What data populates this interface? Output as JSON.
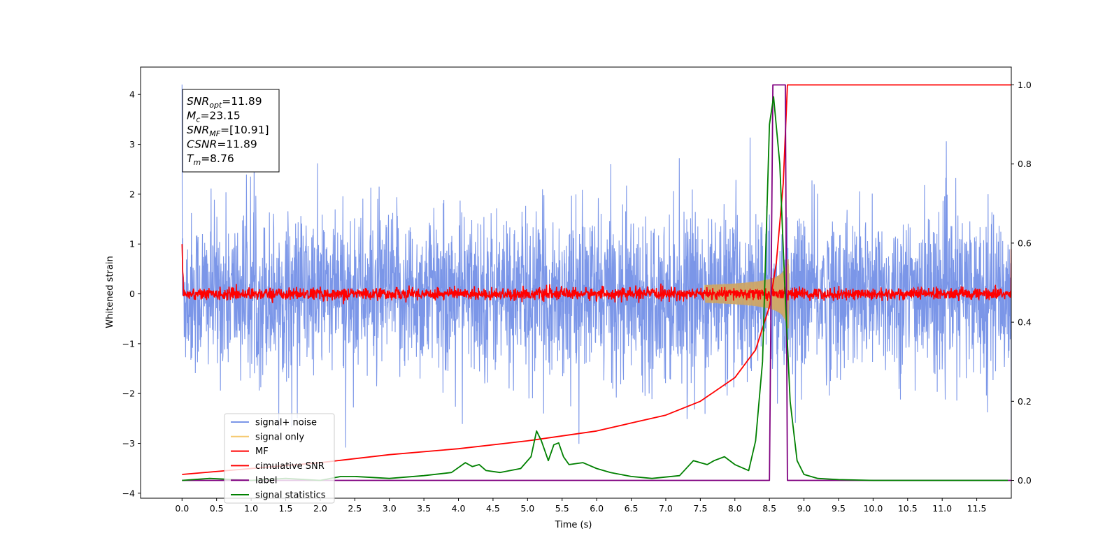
{
  "chart_data": {
    "type": "line",
    "xlabel": "Time (s)",
    "ylabel": "Whitened strain",
    "xlim": [
      -0.6,
      12.0
    ],
    "ylim_left": [
      -4.1,
      4.55
    ],
    "ylim_right": [
      -0.045,
      1.045
    ],
    "x_ticks": [
      0.0,
      0.5,
      1.0,
      1.5,
      2.0,
      2.5,
      3.0,
      3.5,
      4.0,
      4.5,
      5.0,
      5.5,
      6.0,
      6.5,
      7.0,
      7.5,
      8.0,
      8.5,
      9.0,
      9.5,
      10.0,
      10.5,
      11.0,
      11.5
    ],
    "x_tick_labels": [
      "0.0",
      "0.5",
      "1.0",
      "1.5",
      "2.0",
      "2.5",
      "3.0",
      "3.5",
      "4.0",
      "4.5",
      "5.0",
      "5.5",
      "6.0",
      "6.5",
      "7.0",
      "7.5",
      "8.0",
      "8.5",
      "9.0",
      "9.5",
      "10.0",
      "10.5",
      "11.0",
      "11.5"
    ],
    "y_left_ticks": [
      -4,
      -3,
      -2,
      -1,
      0,
      1,
      2,
      3,
      4
    ],
    "y_left_tick_labels": [
      "−4",
      "−3",
      "−2",
      "−1",
      "0",
      "1",
      "2",
      "3",
      "4"
    ],
    "y_right_ticks": [
      0.0,
      0.2,
      0.4,
      0.6,
      0.8,
      1.0
    ],
    "y_right_tick_labels": [
      "0.0",
      "0.2",
      "0.4",
      "0.6",
      "0.8",
      "1.0"
    ],
    "annotation": {
      "lines": [
        {
          "main": "SNR",
          "sub": "opt",
          "rest": "=11.89"
        },
        {
          "main": "M",
          "sub": "c",
          "rest": "=23.15"
        },
        {
          "main": "SNR",
          "sub": "MF",
          "rest": "=[10.91]"
        },
        {
          "main": "CSNR",
          "sub": "",
          "rest": "=11.89"
        },
        {
          "main": "T",
          "sub": "m",
          "rest": "=8.76"
        }
      ]
    },
    "series": [
      {
        "name": "signal+ noise",
        "color": "#7b96e8",
        "axis": "left",
        "style": "noise",
        "x_range": [
          0.0,
          12.0
        ],
        "typical_envelope": [
          -1.6,
          1.6
        ],
        "extreme_range": [
          -3.6,
          4.2
        ]
      },
      {
        "name": "signal only",
        "color": "#f5c96e",
        "axis": "left",
        "style": "chirp",
        "peak_time": 8.76,
        "peak_amplitude": 0.75
      },
      {
        "name": "MF",
        "color": "#ff0000",
        "axis": "left",
        "style": "mf",
        "x_range": [
          0.0,
          12.0
        ],
        "typical_envelope": [
          -0.12,
          0.12
        ],
        "start_value": 1.0,
        "end_value": 0.9
      },
      {
        "name": "cimulative SNR",
        "color": "#ff0000",
        "axis": "right",
        "x": [
          0.0,
          1.0,
          2.0,
          3.0,
          4.0,
          5.0,
          6.0,
          6.5,
          7.0,
          7.5,
          8.0,
          8.3,
          8.5,
          8.6,
          8.7,
          8.76,
          8.77,
          11.5,
          12.0
        ],
        "y": [
          0.015,
          0.03,
          0.045,
          0.065,
          0.08,
          0.1,
          0.125,
          0.145,
          0.165,
          0.2,
          0.26,
          0.33,
          0.44,
          0.55,
          0.75,
          1.0,
          1.0,
          1.0,
          1.0
        ]
      },
      {
        "name": "label",
        "color": "#800080",
        "axis": "right",
        "x": [
          0.0,
          8.5,
          8.55,
          8.73,
          8.76,
          12.0
        ],
        "y": [
          0.0,
          0.0,
          1.0,
          1.0,
          0.0,
          0.0
        ]
      },
      {
        "name": "signal statistics",
        "color": "#008000",
        "axis": "right",
        "x": [
          0.0,
          0.4,
          1.0,
          1.5,
          2.0,
          2.3,
          2.5,
          3.0,
          3.5,
          3.9,
          4.1,
          4.2,
          4.3,
          4.4,
          4.6,
          4.9,
          5.05,
          5.13,
          5.2,
          5.3,
          5.38,
          5.45,
          5.52,
          5.6,
          5.8,
          6.0,
          6.2,
          6.5,
          6.8,
          7.2,
          7.4,
          7.5,
          7.6,
          7.7,
          7.85,
          8.0,
          8.2,
          8.3,
          8.4,
          8.5,
          8.56,
          8.65,
          8.72,
          8.8,
          8.9,
          9.0,
          9.2,
          9.5,
          10.0,
          11.0,
          11.95
        ],
        "y": [
          0.0,
          0.005,
          0.0,
          0.005,
          0.0,
          0.01,
          0.01,
          0.005,
          0.012,
          0.02,
          0.045,
          0.035,
          0.04,
          0.025,
          0.02,
          0.03,
          0.06,
          0.125,
          0.1,
          0.05,
          0.09,
          0.095,
          0.06,
          0.04,
          0.045,
          0.03,
          0.02,
          0.01,
          0.005,
          0.012,
          0.05,
          0.045,
          0.04,
          0.05,
          0.06,
          0.04,
          0.025,
          0.1,
          0.3,
          0.9,
          0.97,
          0.8,
          0.5,
          0.2,
          0.05,
          0.015,
          0.005,
          0.002,
          0.0,
          0.0,
          0.0
        ]
      }
    ],
    "legend": {
      "placement": "lower-left",
      "entries": [
        "signal+ noise",
        "signal only",
        "MF",
        "cimulative SNR",
        "label",
        "signal statistics"
      ]
    }
  }
}
